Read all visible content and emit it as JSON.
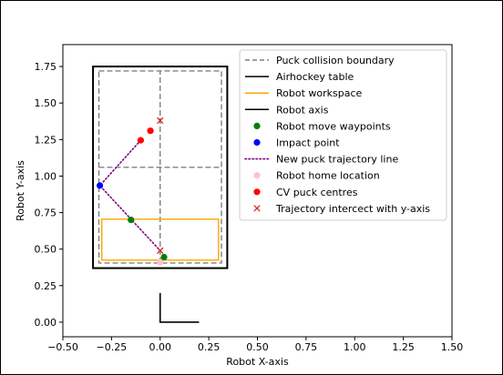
{
  "chart_data": {
    "type": "scatter",
    "xlabel": "Robot X-axis",
    "ylabel": "Robot Y-axis",
    "xlim": [
      -0.5,
      1.5
    ],
    "ylim": [
      -0.1,
      1.9
    ],
    "xticks": [
      -0.5,
      -0.25,
      0.0,
      0.25,
      0.5,
      0.75,
      1.0,
      1.25,
      1.5
    ],
    "xtick_labels": [
      "−0.50",
      "−0.25",
      "0.00",
      "0.25",
      "0.50",
      "0.75",
      "1.00",
      "1.25",
      "1.50"
    ],
    "yticks": [
      0.0,
      0.25,
      0.5,
      0.75,
      1.0,
      1.25,
      1.5,
      1.75
    ],
    "ytick_labels": [
      "0.00",
      "0.25",
      "0.50",
      "0.75",
      "1.00",
      "1.25",
      "1.50",
      "1.75"
    ],
    "grid": false,
    "legend_position": "top-right",
    "legend": [
      {
        "label": "Puck collision boundary",
        "kind": "line",
        "color": "#808080",
        "dash": true
      },
      {
        "label": "Airhockey table",
        "kind": "line",
        "color": "#000000",
        "dash": false
      },
      {
        "label": "Robot workspace",
        "kind": "line",
        "color": "#ffa500",
        "dash": false
      },
      {
        "label": "Robot axis",
        "kind": "line",
        "color": "#000000",
        "dash": false
      },
      {
        "label": "Robot move waypoints",
        "kind": "dot",
        "color": "#008000"
      },
      {
        "label": "Impact point",
        "kind": "dot",
        "color": "#0000ff"
      },
      {
        "label": "New puck trajectory line",
        "kind": "dotted",
        "color": "#800080"
      },
      {
        "label": "Robot home location",
        "kind": "dot",
        "color": "#ffc0cb"
      },
      {
        "label": "CV puck centres",
        "kind": "dot",
        "color": "#ff0000"
      },
      {
        "label": "Trajectory intercect with y-axis",
        "kind": "cross",
        "color": "#d62728"
      }
    ],
    "series": [
      {
        "name": "Airhockey table",
        "kind": "rect",
        "color": "#000000",
        "x": [
          -0.345,
          0.345
        ],
        "y": [
          0.37,
          1.75
        ]
      },
      {
        "name": "Puck collision boundary",
        "kind": "rect-dashed",
        "color": "#808080",
        "x": [
          -0.315,
          0.315
        ],
        "y": [
          0.405,
          1.72
        ]
      },
      {
        "name": "Puck collision boundary",
        "kind": "hline-dashed",
        "color": "#808080",
        "x": [
          -0.315,
          0.315
        ],
        "y": [
          1.06,
          1.06
        ]
      },
      {
        "name": "Puck collision boundary",
        "kind": "vline-dashed",
        "color": "#808080",
        "x": [
          0.0,
          0.0
        ],
        "y": [
          0.405,
          1.72
        ]
      },
      {
        "name": "Robot workspace",
        "kind": "rect",
        "color": "#ffa500",
        "x": [
          -0.3,
          0.3
        ],
        "y": [
          0.425,
          0.705
        ]
      },
      {
        "name": "Robot axis",
        "kind": "polyline",
        "color": "#000000",
        "x": [
          0.0,
          0.0,
          0.2
        ],
        "y": [
          0.2,
          0.0,
          0.0
        ]
      },
      {
        "name": "New puck trajectory line",
        "kind": "dotted",
        "color": "#800080",
        "x": [
          -0.1,
          -0.31,
          0.0
        ],
        "y": [
          1.245,
          0.935,
          0.49
        ]
      },
      {
        "name": "Robot move waypoints",
        "kind": "dot",
        "color": "#008000",
        "x": [
          -0.15,
          0.02
        ],
        "y": [
          0.7,
          0.445
        ]
      },
      {
        "name": "Impact point",
        "kind": "dot",
        "color": "#0000ff",
        "x": [
          -0.31
        ],
        "y": [
          0.935
        ]
      },
      {
        "name": "Robot home location",
        "kind": "dot",
        "color": "#ffc0cb",
        "x": [
          0.0
        ],
        "y": [
          0.41
        ]
      },
      {
        "name": "CV puck centres",
        "kind": "dot",
        "color": "#ff0000",
        "x": [
          -0.1,
          -0.05
        ],
        "y": [
          1.245,
          1.31
        ]
      },
      {
        "name": "Trajectory intercect with y-axis",
        "kind": "cross",
        "color": "#d62728",
        "x": [
          0.0,
          0.0
        ],
        "y": [
          1.38,
          0.49
        ]
      }
    ]
  }
}
